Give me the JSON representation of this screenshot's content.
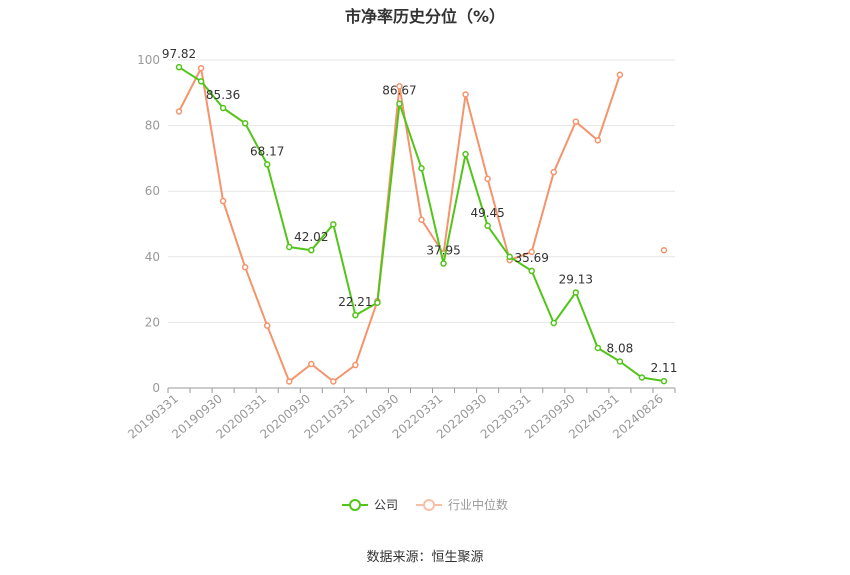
{
  "title": "市净率历史分位（%）",
  "source": "数据来源：恒生聚源",
  "legend": {
    "company": "公司",
    "industry": "行业中位数"
  },
  "colors": {
    "company": "#52c41a",
    "industry": "#f4946c",
    "grid": "#e6e6e6",
    "axis": "#999999"
  },
  "chart_data": {
    "type": "line",
    "title": "市净率历史分位（%）",
    "ylim": [
      0,
      100
    ],
    "yticks": [
      0,
      20,
      40,
      60,
      80,
      100
    ],
    "x": [
      "20190331",
      "20190630",
      "20190930",
      "20191231",
      "20200331",
      "20200630",
      "20200930",
      "20201231",
      "20210331",
      "20210630",
      "20210930",
      "20211231",
      "20220331",
      "20220630",
      "20220930",
      "20221231",
      "20230331",
      "20230630",
      "20230930",
      "20231231",
      "20240331",
      "20240630",
      "20240826"
    ],
    "xtick_labels": [
      "20190331",
      "20190930",
      "20200331",
      "20200930",
      "20210331",
      "20210930",
      "20220331",
      "20220930",
      "20230331",
      "20230930",
      "20240331",
      "20240826"
    ],
    "series": [
      {
        "name": "公司",
        "values": [
          97.82,
          93.5,
          85.36,
          80.7,
          68.17,
          43.0,
          42.02,
          49.9,
          22.21,
          26.0,
          86.67,
          67.0,
          37.95,
          71.3,
          49.45,
          40.0,
          35.69,
          19.8,
          29.13,
          12.2,
          8.08,
          3.2,
          2.11
        ]
      },
      {
        "name": "行业中位数",
        "values": [
          84.3,
          97.5,
          57.0,
          36.8,
          19.0,
          2.0,
          7.3,
          2.0,
          7.0,
          26.5,
          92.0,
          51.3,
          41.0,
          89.5,
          63.8,
          39.0,
          41.5,
          65.8,
          81.2,
          75.5,
          95.5,
          null,
          42.0
        ]
      }
    ],
    "data_labels": [
      {
        "index": 0,
        "text": "97.82"
      },
      {
        "index": 2,
        "text": "85.36"
      },
      {
        "index": 4,
        "text": "68.17"
      },
      {
        "index": 6,
        "text": "42.02"
      },
      {
        "index": 8,
        "text": "22.21"
      },
      {
        "index": 10,
        "text": "86.67"
      },
      {
        "index": 12,
        "text": "37.95"
      },
      {
        "index": 14,
        "text": "49.45"
      },
      {
        "index": 16,
        "text": "35.69"
      },
      {
        "index": 18,
        "text": "29.13"
      },
      {
        "index": 20,
        "text": "8.08"
      },
      {
        "index": 22,
        "text": "2.11"
      }
    ],
    "grid": true,
    "legend_position": "bottom"
  }
}
